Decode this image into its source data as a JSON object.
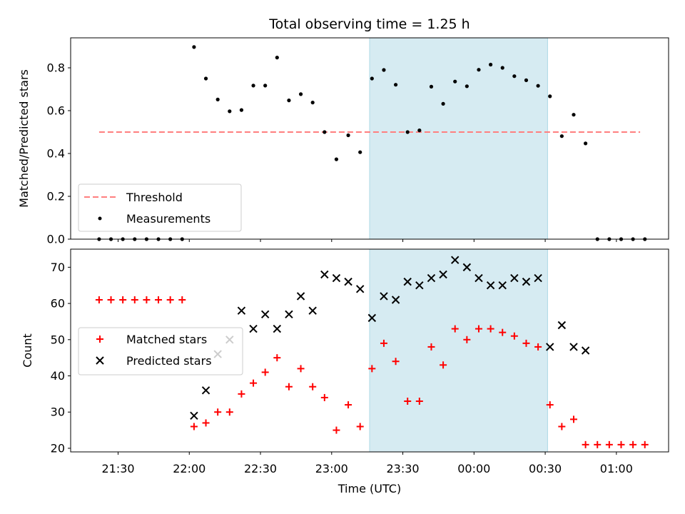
{
  "figure_title": "Total observing time = 1.25 h",
  "colors": {
    "threshold": "#ff7f7f",
    "measurement": "#000000",
    "matched": "#ff0000",
    "predicted": "#000000",
    "highlight": "#add8e6"
  },
  "chart_data": [
    {
      "type": "scatter",
      "panel": "top",
      "xlabel": "",
      "ylabel": "Matched/Predicted stars",
      "x_unit": "minutes after 21:00 UTC",
      "xlim": [
        "21:10",
        "01:22"
      ],
      "ylim": [
        0,
        0.94
      ],
      "yticks": [
        "0.0",
        "0.2",
        "0.4",
        "0.6",
        "0.8"
      ],
      "grid": false,
      "legend_position": "lower-left",
      "highlight_span": [
        "23:16",
        "00:31"
      ],
      "series": [
        {
          "name": "Threshold",
          "type": "line",
          "style": "dashed",
          "x": [
            "21:22",
            "01:10"
          ],
          "y": [
            0.5,
            0.5
          ]
        },
        {
          "name": "Measurements",
          "type": "scatter",
          "marker": "dot",
          "x": [
            "21:22",
            "21:27",
            "21:32",
            "21:37",
            "21:42",
            "21:47",
            "21:52",
            "21:57",
            "22:02",
            "22:07",
            "22:12",
            "22:17",
            "22:22",
            "22:27",
            "22:32",
            "22:37",
            "22:42",
            "22:47",
            "22:52",
            "22:57",
            "23:02",
            "23:07",
            "23:12",
            "23:17",
            "23:22",
            "23:27",
            "23:32",
            "23:37",
            "23:42",
            "23:47",
            "23:52",
            "23:57",
            "00:02",
            "00:07",
            "00:12",
            "00:17",
            "00:22",
            "00:27",
            "00:32",
            "00:37",
            "00:42",
            "00:47",
            "00:52",
            "00:57",
            "01:02",
            "01:07",
            "01:12"
          ],
          "y": [
            0.0,
            0.0,
            0.0,
            0.0,
            0.0,
            0.0,
            0.0,
            0.0,
            0.897,
            0.75,
            0.652,
            0.597,
            0.603,
            0.717,
            0.717,
            0.848,
            0.648,
            0.677,
            0.638,
            0.5,
            0.373,
            0.485,
            0.406,
            0.75,
            0.79,
            0.721,
            0.5,
            0.508,
            0.712,
            0.632,
            0.736,
            0.714,
            0.791,
            0.815,
            0.8,
            0.761,
            0.742,
            0.716,
            0.667,
            0.481,
            0.581,
            0.447,
            0.0,
            0.0,
            0.0,
            0.0,
            0.0
          ]
        }
      ]
    },
    {
      "type": "scatter",
      "panel": "bottom",
      "xlabel": "Time (UTC)",
      "ylabel": "Count",
      "xlim": [
        "21:10",
        "01:22"
      ],
      "xticks": [
        "21:30",
        "22:00",
        "22:30",
        "23:00",
        "23:30",
        "00:00",
        "00:30",
        "01:00"
      ],
      "ylim": [
        19,
        75
      ],
      "yticks": [
        "20",
        "30",
        "40",
        "50",
        "60",
        "70"
      ],
      "grid": false,
      "legend_position": "center-left",
      "highlight_span": [
        "23:16",
        "00:31"
      ],
      "series": [
        {
          "name": "Matched stars",
          "marker": "plus",
          "x": [
            "21:22",
            "21:27",
            "21:32",
            "21:37",
            "21:42",
            "21:47",
            "21:52",
            "21:57",
            "22:02",
            "22:07",
            "22:12",
            "22:17",
            "22:22",
            "22:27",
            "22:32",
            "22:37",
            "22:42",
            "22:47",
            "22:52",
            "22:57",
            "23:02",
            "23:07",
            "23:12",
            "23:17",
            "23:22",
            "23:27",
            "23:32",
            "23:37",
            "23:42",
            "23:47",
            "23:52",
            "23:57",
            "00:02",
            "00:07",
            "00:12",
            "00:17",
            "00:22",
            "00:27",
            "00:32",
            "00:37",
            "00:42",
            "00:47",
            "00:52",
            "00:57",
            "01:02",
            "01:07",
            "01:12"
          ],
          "y": [
            61,
            61,
            61,
            61,
            61,
            61,
            61,
            61,
            26,
            27,
            30,
            30,
            35,
            38,
            41,
            45,
            37,
            42,
            37,
            34,
            25,
            32,
            26,
            42,
            49,
            44,
            33,
            33,
            48,
            43,
            53,
            50,
            53,
            53,
            52,
            51,
            49,
            48,
            32,
            26,
            28,
            21,
            21,
            21,
            21,
            21,
            21
          ]
        },
        {
          "name": "Predicted stars",
          "marker": "x",
          "x": [
            "22:02",
            "22:07",
            "22:12",
            "22:17",
            "22:22",
            "22:27",
            "22:32",
            "22:37",
            "22:42",
            "22:47",
            "22:52",
            "22:57",
            "23:02",
            "23:07",
            "23:12",
            "23:17",
            "23:22",
            "23:27",
            "23:32",
            "23:37",
            "23:42",
            "23:47",
            "23:52",
            "23:57",
            "00:02",
            "00:07",
            "00:12",
            "00:17",
            "00:22",
            "00:27",
            "00:32",
            "00:37",
            "00:42",
            "00:47"
          ],
          "y": [
            29,
            36,
            46,
            50,
            58,
            53,
            57,
            53,
            57,
            62,
            58,
            68,
            67,
            66,
            64,
            56,
            62,
            61,
            66,
            65,
            67,
            68,
            72,
            70,
            67,
            65,
            65,
            67,
            66,
            67,
            48,
            54,
            48,
            47
          ]
        }
      ]
    }
  ]
}
